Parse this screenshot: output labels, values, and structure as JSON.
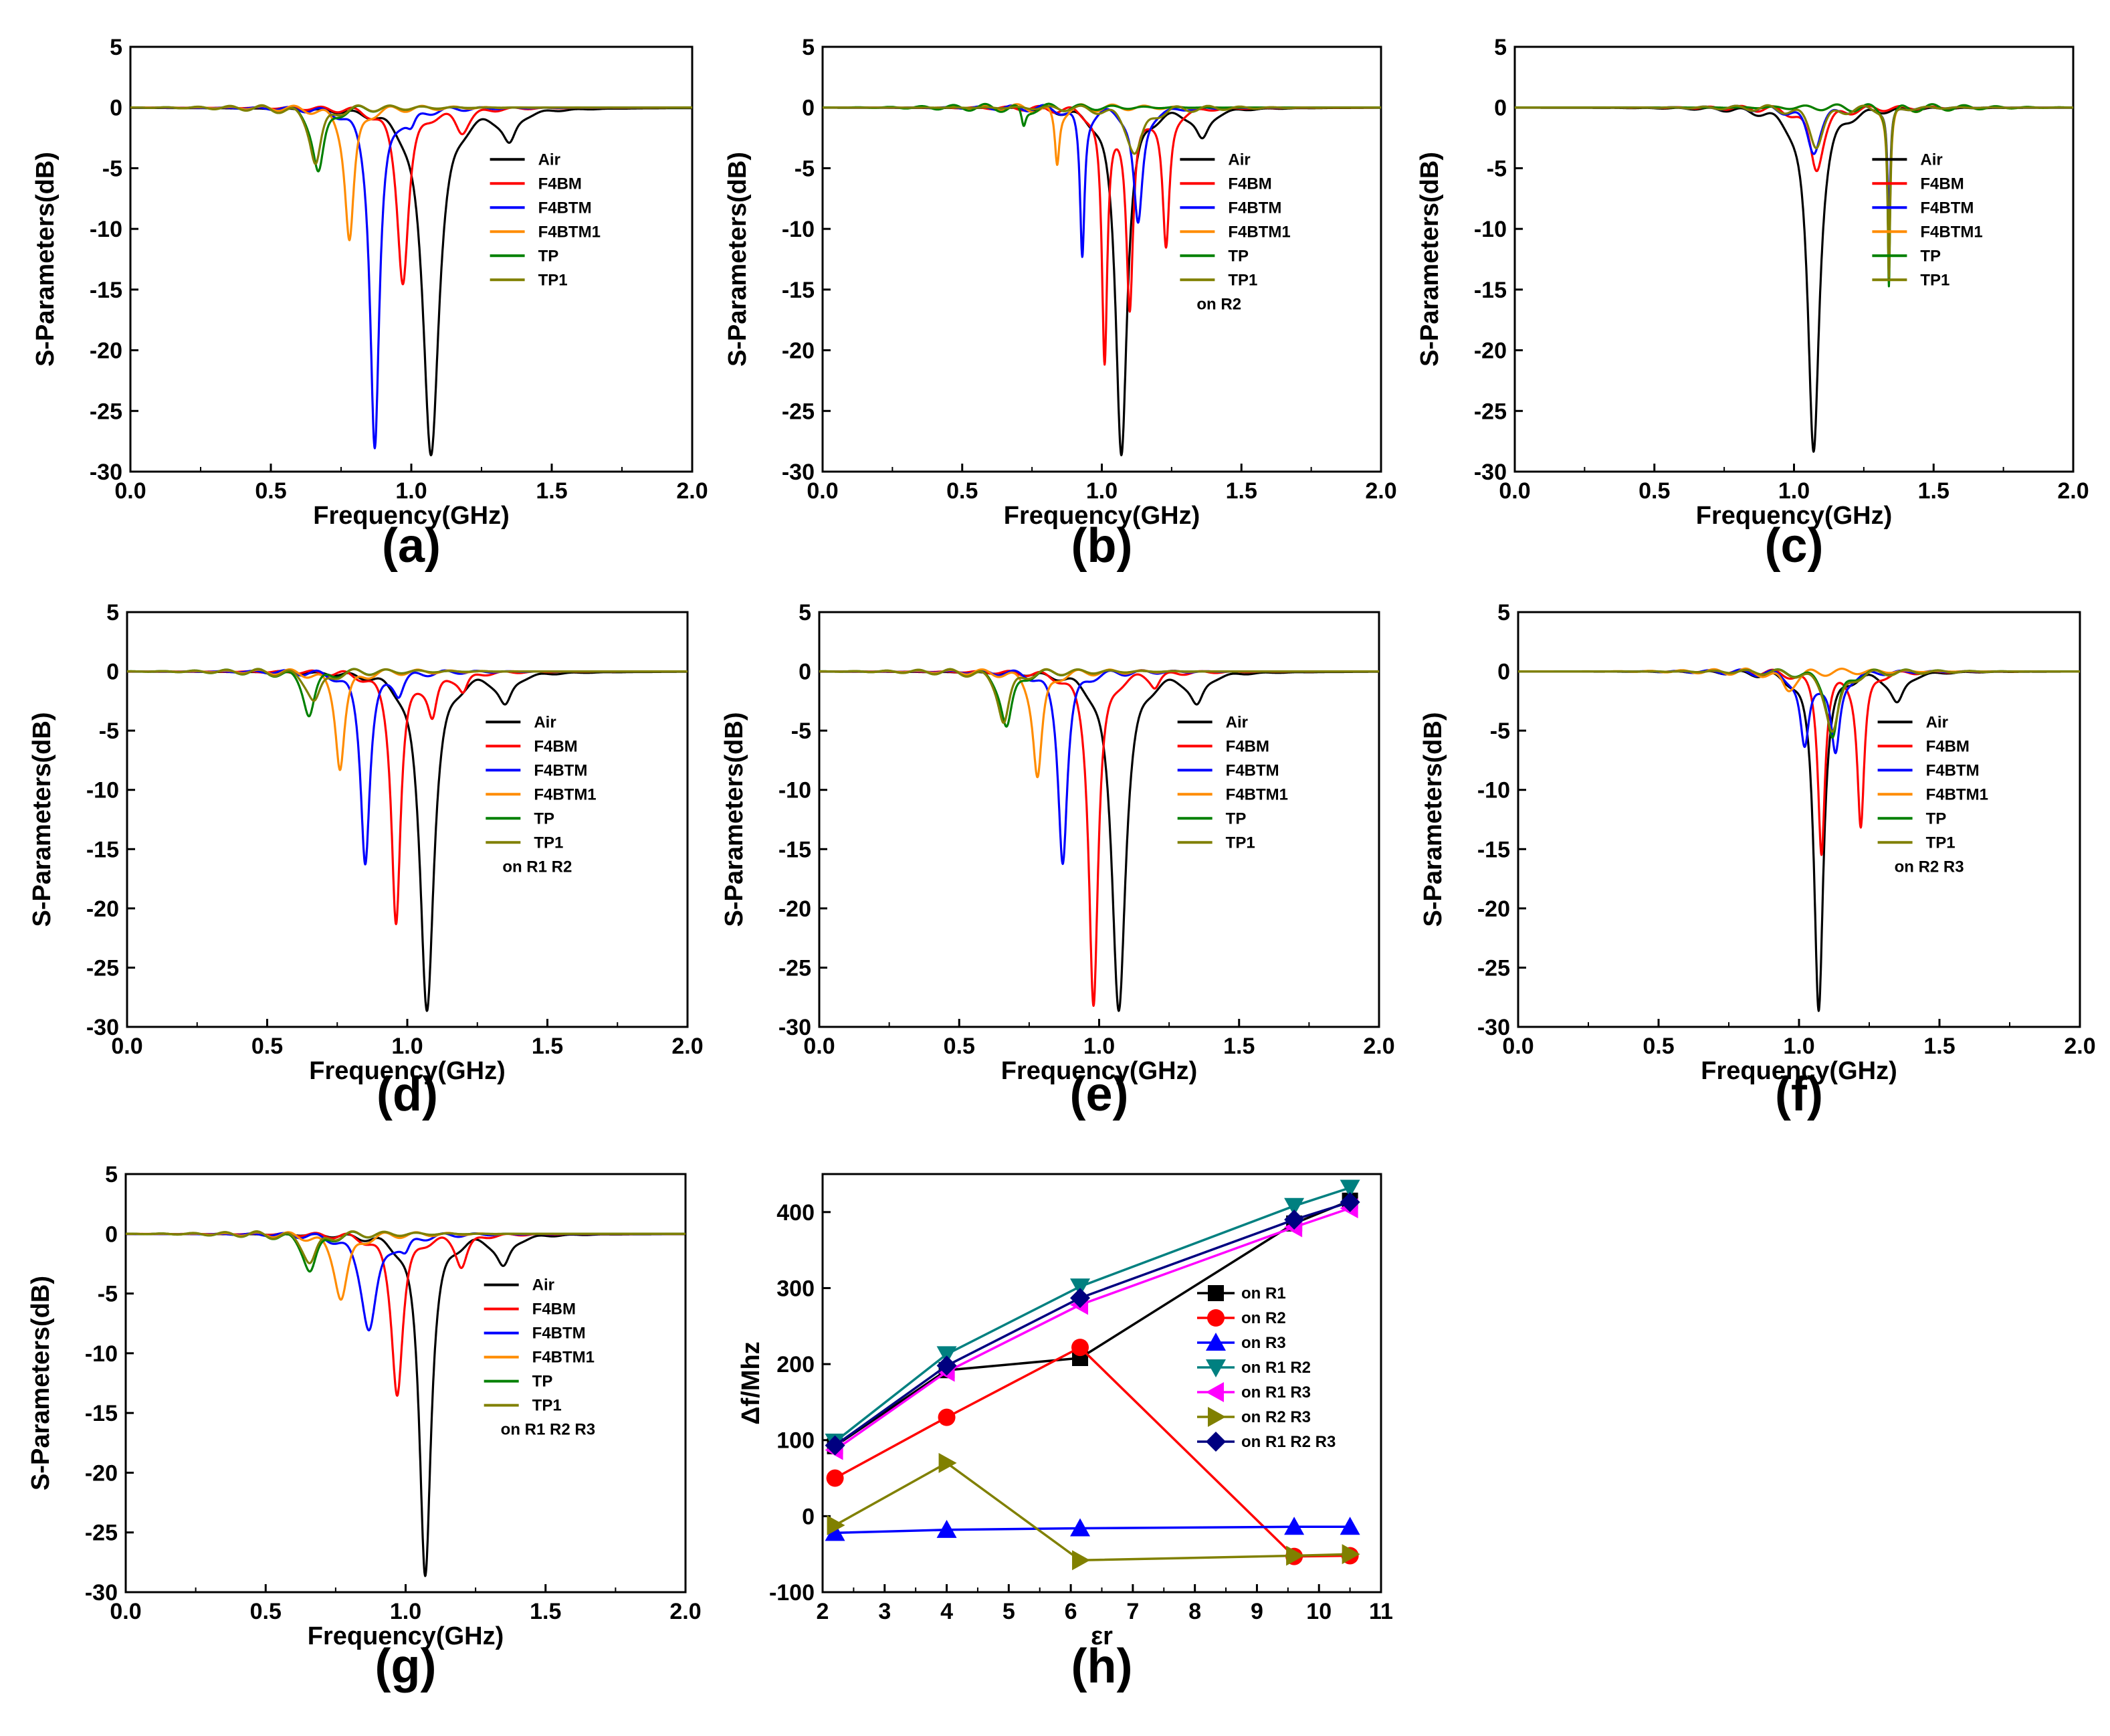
{
  "figure": {
    "colors": {
      "Air": "#000000",
      "F4BM": "#ff0000",
      "F4BTM": "#0000ff",
      "F4BTM1": "#ff8c00",
      "TP": "#008000",
      "TP1": "#808000",
      "on R1": "#000000",
      "on R2": "#ff0000",
      "on R3": "#0000ff",
      "on R1 R2": "#008080",
      "on R1 R3": "#ff00ff",
      "on R2 R3": "#808000",
      "on R1 R2 R3": "#000080"
    }
  },
  "chart_data": [
    {
      "id": "a",
      "panel_label": "(a)",
      "type": "line",
      "xlabel": "Frequency(GHz)",
      "ylabel": "S-Parameters(dB)",
      "xlim": [
        0,
        2
      ],
      "ylim": [
        -30,
        5
      ],
      "xticks": [
        0,
        0.5,
        1,
        1.5,
        2
      ],
      "xtick_labels": [
        "0.0",
        "0.5",
        "1.0",
        "1.5",
        "2.0"
      ],
      "yticks": [
        5,
        0,
        -5,
        -10,
        -15,
        -20,
        -25,
        -30
      ],
      "ytick_labels": [
        "5",
        "0",
        "-5",
        "-10",
        "-15",
        "-20",
        "-25",
        "-30"
      ],
      "note": "",
      "series": [
        {
          "name": "Air",
          "dips": [
            [
              1.07,
              -28.3,
              0.035
            ],
            [
              1.35,
              -2.6,
              0.03
            ]
          ]
        },
        {
          "name": "F4BM",
          "dips": [
            [
              0.97,
              -14.2,
              0.025
            ],
            [
              1.18,
              -1.8,
              0.03
            ]
          ]
        },
        {
          "name": "F4BTM",
          "dips": [
            [
              0.87,
              -27.9,
              0.02
            ],
            [
              1.0,
              -1.2,
              0.02
            ]
          ]
        },
        {
          "name": "F4BTM1",
          "dips": [
            [
              0.78,
              -10.9,
              0.02
            ]
          ]
        },
        {
          "name": "TP",
          "dips": [
            [
              0.67,
              -5.3,
              0.025
            ]
          ]
        },
        {
          "name": "TP1",
          "dips": [
            [
              0.66,
              -4.5,
              0.025
            ]
          ]
        }
      ]
    },
    {
      "id": "b",
      "panel_label": "(b)",
      "type": "line",
      "xlabel": "Frequency(GHz)",
      "ylabel": "S-Parameters(dB)",
      "xlim": [
        0,
        2
      ],
      "ylim": [
        -30,
        5
      ],
      "xticks": [
        0,
        0.5,
        1,
        1.5,
        2
      ],
      "xtick_labels": [
        "0.0",
        "0.5",
        "1.0",
        "1.5",
        "2.0"
      ],
      "yticks": [
        5,
        0,
        -5,
        -10,
        -15,
        -20,
        -25,
        -30
      ],
      "ytick_labels": [
        "5",
        "0",
        "-5",
        "-10",
        "-15",
        "-20",
        "-25",
        "-30"
      ],
      "note": "on R2",
      "series": [
        {
          "name": "Air",
          "dips": [
            [
              1.07,
              -28.3,
              0.025
            ],
            [
              1.36,
              -2.5,
              0.03
            ]
          ]
        },
        {
          "name": "F4BM",
          "dips": [
            [
              1.01,
              -21.0,
              0.012
            ],
            [
              1.1,
              -16.5,
              0.015
            ],
            [
              1.23,
              -11.5,
              0.015
            ]
          ]
        },
        {
          "name": "F4BTM",
          "dips": [
            [
              0.93,
              -12.3,
              0.01
            ],
            [
              1.13,
              -9.7,
              0.02
            ]
          ]
        },
        {
          "name": "F4BTM1",
          "dips": [
            [
              0.84,
              -4.7,
              0.01
            ]
          ]
        },
        {
          "name": "TP",
          "dips": [
            [
              0.72,
              -1.6,
              0.01
            ]
          ]
        },
        {
          "name": "TP1",
          "dips": [
            [
              1.12,
              -3.7,
              0.035
            ]
          ]
        }
      ]
    },
    {
      "id": "c",
      "panel_label": "(c)",
      "type": "line",
      "xlabel": "Frequency(GHz)",
      "ylabel": "S-Parameters(dB)",
      "xlim": [
        0,
        2
      ],
      "ylim": [
        -30,
        5
      ],
      "xticks": [
        0,
        0.5,
        1,
        1.5,
        2
      ],
      "xtick_labels": [
        "0.0",
        "0.5",
        "1.0",
        "1.5",
        "2.0"
      ],
      "yticks": [
        5,
        0,
        -5,
        -10,
        -15,
        -20,
        -25,
        -30
      ],
      "ytick_labels": [
        "5",
        "0",
        "-5",
        "-10",
        "-15",
        "-20",
        "-25",
        "-30"
      ],
      "note": "",
      "series": [
        {
          "name": "Air",
          "dips": [
            [
              1.07,
              -28.3,
              0.025
            ]
          ]
        },
        {
          "name": "F4BM",
          "dips": [
            [
              1.08,
              -5.0,
              0.03
            ]
          ]
        },
        {
          "name": "F4BTM",
          "dips": [
            [
              1.07,
              -3.5,
              0.03
            ],
            [
              1.34,
              -9.5,
              0.006
            ]
          ]
        },
        {
          "name": "F4BTM1",
          "dips": [
            [
              1.34,
              -13.0,
              0.006
            ]
          ]
        },
        {
          "name": "TP",
          "dips": [
            [
              1.34,
              -14.5,
              0.005
            ]
          ]
        },
        {
          "name": "TP1",
          "dips": [
            [
              1.08,
              -3.0,
              0.03
            ],
            [
              1.34,
              -14.0,
              0.005
            ]
          ]
        }
      ]
    },
    {
      "id": "d",
      "panel_label": "(d)",
      "type": "line",
      "xlabel": "Frequency(GHz)",
      "ylabel": "S-Parameters(dB)",
      "xlim": [
        0,
        2
      ],
      "ylim": [
        -30,
        5
      ],
      "xticks": [
        0,
        0.5,
        1,
        1.5,
        2
      ],
      "xtick_labels": [
        "0.0",
        "0.5",
        "1.0",
        "1.5",
        "2.0"
      ],
      "yticks": [
        5,
        0,
        -5,
        -10,
        -15,
        -20,
        -25,
        -30
      ],
      "ytick_labels": [
        "5",
        "0",
        "-5",
        "-10",
        "-15",
        "-20",
        "-25",
        "-30"
      ],
      "note": "on R1 R2",
      "series": [
        {
          "name": "Air",
          "dips": [
            [
              1.07,
              -28.3,
              0.03
            ],
            [
              1.35,
              -2.6,
              0.03
            ]
          ]
        },
        {
          "name": "F4BM",
          "dips": [
            [
              0.96,
              -21.0,
              0.02
            ],
            [
              1.09,
              -3.5,
              0.02
            ],
            [
              1.2,
              -1.5,
              0.02
            ]
          ]
        },
        {
          "name": "F4BTM",
          "dips": [
            [
              0.85,
              -15.9,
              0.02
            ],
            [
              0.97,
              -1.5,
              0.02
            ]
          ]
        },
        {
          "name": "F4BTM1",
          "dips": [
            [
              0.76,
              -8.0,
              0.02
            ]
          ]
        },
        {
          "name": "TP",
          "dips": [
            [
              0.65,
              -3.5,
              0.025
            ]
          ]
        },
        {
          "name": "TP1",
          "dips": [
            [
              0.67,
              -2.5,
              0.03
            ]
          ]
        }
      ]
    },
    {
      "id": "e",
      "panel_label": "(e)",
      "type": "line",
      "xlabel": "Frequency(GHz)",
      "ylabel": "S-Parameters(dB)",
      "xlim": [
        0,
        2
      ],
      "ylim": [
        -30,
        5
      ],
      "xticks": [
        0,
        0.5,
        1,
        1.5,
        2
      ],
      "xtick_labels": [
        "0.0",
        "0.5",
        "1.0",
        "1.5",
        "2.0"
      ],
      "yticks": [
        5,
        0,
        -5,
        -10,
        -15,
        -20,
        -25,
        -30
      ],
      "ytick_labels": [
        "5",
        "0",
        "-5",
        "-10",
        "-15",
        "-20",
        "-25",
        "-30"
      ],
      "note": "",
      "series": [
        {
          "name": "Air",
          "dips": [
            [
              1.07,
              -28.3,
              0.03
            ],
            [
              1.35,
              -2.6,
              0.03
            ]
          ]
        },
        {
          "name": "F4BM",
          "dips": [
            [
              0.98,
              -28.0,
              0.02
            ],
            [
              1.2,
              -1.0,
              0.02
            ]
          ]
        },
        {
          "name": "F4BTM",
          "dips": [
            [
              0.87,
              -15.9,
              0.02
            ]
          ]
        },
        {
          "name": "F4BTM1",
          "dips": [
            [
              0.78,
              -8.9,
              0.02
            ]
          ]
        },
        {
          "name": "TP",
          "dips": [
            [
              0.67,
              -4.7,
              0.025
            ]
          ]
        },
        {
          "name": "TP1",
          "dips": [
            [
              0.66,
              -4.2,
              0.025
            ]
          ]
        }
      ]
    },
    {
      "id": "f",
      "panel_label": "(f)",
      "type": "line",
      "xlabel": "Frequency(GHz)",
      "ylabel": "S-Parameters(dB)",
      "xlim": [
        0,
        2
      ],
      "ylim": [
        -30,
        5
      ],
      "xticks": [
        0,
        0.5,
        1,
        1.5,
        2
      ],
      "xtick_labels": [
        "0.0",
        "0.5",
        "1.0",
        "1.5",
        "2.0"
      ],
      "yticks": [
        5,
        0,
        -5,
        -10,
        -15,
        -20,
        -25,
        -30
      ],
      "ytick_labels": [
        "5",
        "0",
        "-5",
        "-10",
        "-15",
        "-20",
        "-25",
        "-30"
      ],
      "note": "on R2 R3",
      "series": [
        {
          "name": "Air",
          "dips": [
            [
              1.07,
              -28.3,
              0.02
            ],
            [
              1.35,
              -2.6,
              0.03
            ]
          ]
        },
        {
          "name": "F4BM",
          "dips": [
            [
              1.08,
              -15.0,
              0.015
            ],
            [
              1.22,
              -13.0,
              0.015
            ]
          ]
        },
        {
          "name": "F4BTM",
          "dips": [
            [
              1.02,
              -6.5,
              0.02
            ],
            [
              1.13,
              -7.0,
              0.02
            ]
          ]
        },
        {
          "name": "F4BTM1",
          "dips": [
            [
              0.96,
              -1.5,
              0.03
            ]
          ]
        },
        {
          "name": "TP",
          "dips": [
            [
              1.12,
              -5.5,
              0.025
            ]
          ]
        },
        {
          "name": "TP1",
          "dips": [
            [
              1.12,
              -5.0,
              0.03
            ]
          ]
        }
      ]
    },
    {
      "id": "g",
      "panel_label": "(g)",
      "type": "line",
      "xlabel": "Frequency(GHz)",
      "ylabel": "S-Parameters(dB)",
      "xlim": [
        0,
        2
      ],
      "ylim": [
        -30,
        5
      ],
      "xticks": [
        0,
        0.5,
        1,
        1.5,
        2
      ],
      "xtick_labels": [
        "0.0",
        "0.5",
        "1.0",
        "1.5",
        "2.0"
      ],
      "yticks": [
        5,
        0,
        -5,
        -10,
        -15,
        -20,
        -25,
        -30
      ],
      "ytick_labels": [
        "5",
        "0",
        "-5",
        "-10",
        "-15",
        "-20",
        "-25",
        "-30"
      ],
      "note": "on R1 R2 R3",
      "series": [
        {
          "name": "Air",
          "dips": [
            [
              1.07,
              -28.3,
              0.025
            ],
            [
              1.35,
              -2.6,
              0.03
            ]
          ]
        },
        {
          "name": "F4BM",
          "dips": [
            [
              0.97,
              -13.2,
              0.025
            ],
            [
              1.2,
              -2.5,
              0.025
            ]
          ]
        },
        {
          "name": "F4BTM",
          "dips": [
            [
              0.87,
              -7.9,
              0.035
            ],
            [
              1.0,
              -1.2,
              0.02
            ]
          ]
        },
        {
          "name": "F4BTM1",
          "dips": [
            [
              0.77,
              -5.3,
              0.03
            ]
          ]
        },
        {
          "name": "TP",
          "dips": [
            [
              0.66,
              -3.0,
              0.03
            ]
          ]
        },
        {
          "name": "TP1",
          "dips": [
            [
              0.66,
              -2.3,
              0.03
            ]
          ]
        }
      ]
    },
    {
      "id": "h",
      "panel_label": "(h)",
      "type": "line",
      "xlabel": "εr",
      "ylabel": "Δf/Mhz",
      "xlim": [
        2,
        11
      ],
      "ylim": [
        -100,
        450
      ],
      "xticks": [
        2,
        3,
        4,
        5,
        6,
        7,
        8,
        9,
        10,
        11
      ],
      "xtick_labels": [
        "2",
        "3",
        "4",
        "5",
        "6",
        "7",
        "8",
        "9",
        "10",
        "11"
      ],
      "yticks": [
        400,
        300,
        200,
        100,
        0,
        -100
      ],
      "ytick_labels": [
        "400",
        "300",
        "200",
        "100",
        "0",
        "-100"
      ],
      "x": [
        2.2,
        4.0,
        6.15,
        9.6,
        10.5
      ],
      "series": [
        {
          "name": "on R1",
          "marker": "square",
          "values": [
            92,
            192,
            208,
            385,
            415
          ]
        },
        {
          "name": "on R2",
          "marker": "circle",
          "values": [
            50,
            130,
            222,
            -53,
            -52
          ]
        },
        {
          "name": "on R3",
          "marker": "triangle-up",
          "values": [
            -22,
            -18,
            -16,
            -14,
            -14
          ]
        },
        {
          "name": "on R1 R2",
          "marker": "triangle-down",
          "values": [
            98,
            213,
            302,
            408,
            432
          ]
        },
        {
          "name": "on R1 R3",
          "marker": "triangle-left",
          "values": [
            87,
            190,
            278,
            380,
            405
          ]
        },
        {
          "name": "on R2 R3",
          "marker": "triangle-right",
          "values": [
            -12,
            70,
            -58,
            -52,
            -50
          ]
        },
        {
          "name": "on R1 R2 R3",
          "marker": "diamond",
          "values": [
            93,
            198,
            287,
            390,
            413
          ]
        }
      ]
    }
  ]
}
